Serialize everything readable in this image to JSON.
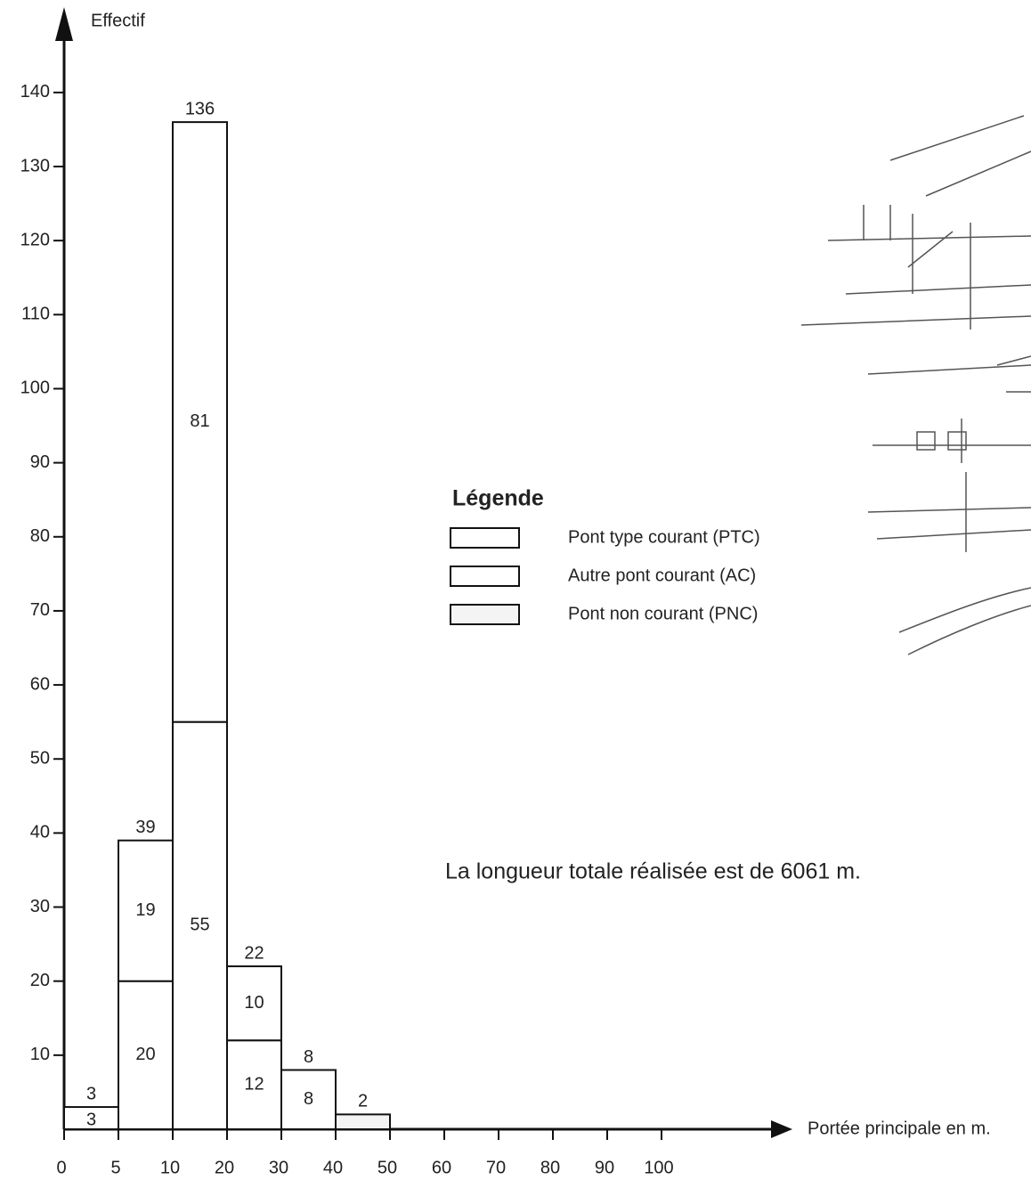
{
  "chart_data": {
    "type": "stacked-histogram",
    "y_label": "Effectif",
    "x_label": "Portée principale en m.",
    "bins": [
      0,
      5,
      10,
      20,
      30,
      40,
      50
    ],
    "series": [
      {
        "name": "Pont type courant (PTC)",
        "color": "#ffffff",
        "values": [
          3,
          20,
          55,
          12,
          8,
          null
        ]
      },
      {
        "name": "Autre pont courant (AC)",
        "color": "#ffffff",
        "values": [
          null,
          19,
          81,
          10,
          null,
          null
        ]
      },
      {
        "name": "Pont non courant (PNC)",
        "color": "#f4f4f4",
        "values": [
          null,
          null,
          null,
          null,
          null,
          2
        ]
      }
    ],
    "totals": [
      3,
      39,
      136,
      22,
      8,
      2
    ],
    "legend_title": "Légende",
    "annotation": "La longueur totale réalisée est de 6061 m.",
    "xticks": [
      0,
      5,
      10,
      20,
      30,
      40,
      50,
      60,
      70,
      80,
      90,
      100
    ],
    "ylim": [
      0,
      150
    ],
    "yticks": [
      10,
      20,
      30,
      40,
      50,
      60,
      70,
      80,
      90,
      100,
      110,
      120,
      130,
      140
    ]
  }
}
